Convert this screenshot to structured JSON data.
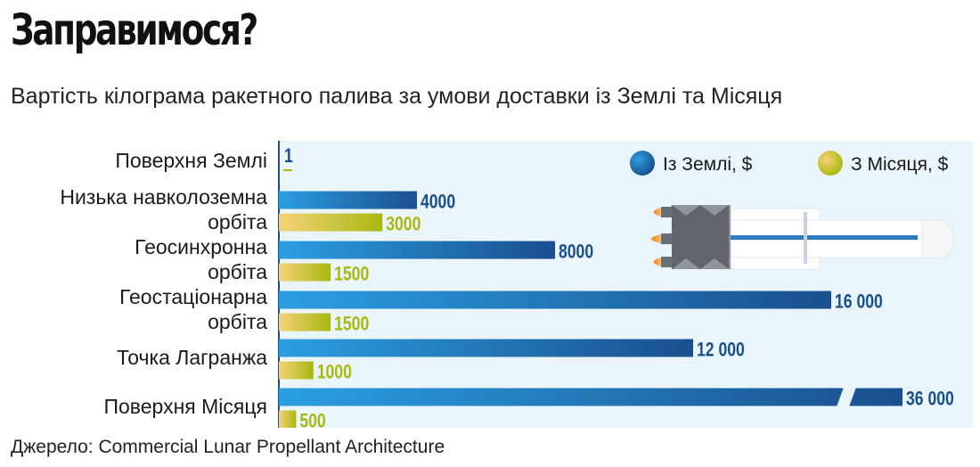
{
  "title": "Заправимося?",
  "subtitle": "Вартість кілограма ракетного палива за умови доставки із Землі та Місяця",
  "source": "Джерело: Commercial Lunar Propellant Architecture",
  "colors": {
    "earth_dark": "#1a4f8f",
    "earth_light": "#2b9fe0",
    "moon_dark": "#a8b80e",
    "moon_light": "#f6d27a",
    "panel": "#eaf5fb",
    "axis": "#1a4f8f"
  },
  "chart_data": {
    "type": "bar",
    "orientation": "horizontal",
    "categories": [
      [
        "Поверхня Землі"
      ],
      [
        "Низька навколоземна",
        "орбіта"
      ],
      [
        "Геосинхронна",
        "орбіта"
      ],
      [
        "Геостаціонарна",
        "орбіта"
      ],
      [
        "Точка Лагранжа"
      ],
      [
        "Поверхня Місяця"
      ]
    ],
    "series": [
      {
        "name": "Із Землі, $",
        "values": [
          1,
          4000,
          8000,
          16000,
          12000,
          36000
        ],
        "labels": [
          "1",
          "4000",
          "8000",
          "16 000",
          "12 000",
          "36 000"
        ]
      },
      {
        "name": "З Місяця, $",
        "values": [
          0,
          3000,
          1500,
          1500,
          1000,
          500
        ],
        "labels": [
          "",
          "3000",
          "1500",
          "1500",
          "1000",
          "500"
        ]
      }
    ],
    "axis_break_after": 16000,
    "legend_position": "top-right",
    "grid": false
  }
}
